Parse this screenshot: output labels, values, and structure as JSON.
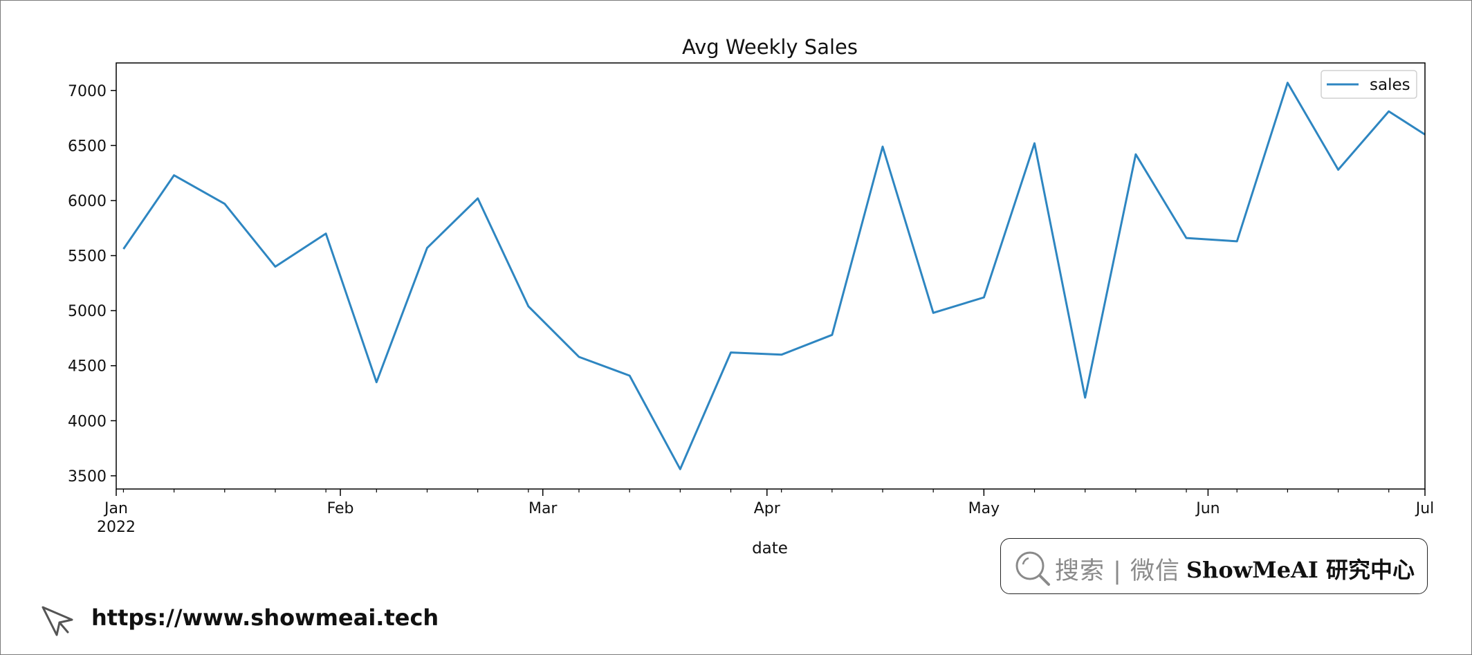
{
  "chart_data": {
    "type": "line",
    "title": "Avg Weekly Sales",
    "xlabel": "date",
    "ylabel": "",
    "ylim": [
      3380,
      7250
    ],
    "yticks": [
      3500,
      4000,
      4500,
      5000,
      5500,
      6000,
      6500,
      7000
    ],
    "xlim": [
      "2022-01-01",
      "2022-07-01"
    ],
    "xticks": [
      {
        "date": "2022-01-01",
        "label": "Jan",
        "sublabel": "2022"
      },
      {
        "date": "2022-02-01",
        "label": "Feb",
        "sublabel": ""
      },
      {
        "date": "2022-03-01",
        "label": "Mar",
        "sublabel": ""
      },
      {
        "date": "2022-04-01",
        "label": "Apr",
        "sublabel": ""
      },
      {
        "date": "2022-05-01",
        "label": "May",
        "sublabel": ""
      },
      {
        "date": "2022-06-01",
        "label": "Jun",
        "sublabel": ""
      },
      {
        "date": "2022-07-01",
        "label": "Jul",
        "sublabel": ""
      }
    ],
    "grid": false,
    "legend_position": "top-right",
    "series": [
      {
        "name": "sales",
        "color": "#2e86c1",
        "x": [
          "2022-01-02",
          "2022-01-09",
          "2022-01-16",
          "2022-01-23",
          "2022-01-30",
          "2022-02-06",
          "2022-02-13",
          "2022-02-20",
          "2022-02-27",
          "2022-03-06",
          "2022-03-13",
          "2022-03-20",
          "2022-03-27",
          "2022-04-03",
          "2022-04-10",
          "2022-04-17",
          "2022-04-24",
          "2022-05-01",
          "2022-05-08",
          "2022-05-15",
          "2022-05-22",
          "2022-05-29",
          "2022-06-05",
          "2022-06-12",
          "2022-06-19",
          "2022-06-26",
          "2022-07-03"
        ],
        "values": [
          5560,
          6230,
          5970,
          5400,
          5700,
          4350,
          5570,
          6020,
          5040,
          4580,
          4410,
          3560,
          4620,
          4600,
          4780,
          6490,
          4980,
          5120,
          6520,
          4210,
          6420,
          5660,
          5630,
          7070,
          6280,
          6810,
          6600
        ]
      }
    ]
  },
  "watermark": {
    "search_text": "搜索 | 微信",
    "brand_text": "ShowMeAI 研究中心",
    "url": "https://www.showmeai.tech",
    "search_icon": "search-icon",
    "cursor_icon": "cursor-icon"
  }
}
